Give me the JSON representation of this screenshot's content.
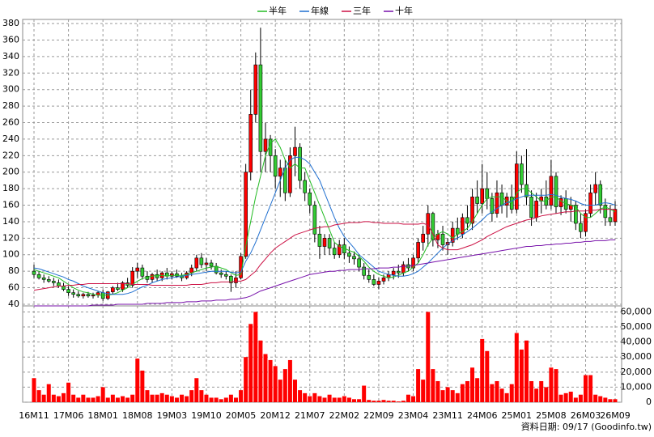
{
  "chart_data": {
    "type": "candlestick",
    "categories": [
      "16M11",
      null,
      null,
      null,
      null,
      null,
      null,
      "17M06",
      null,
      null,
      null,
      null,
      null,
      null,
      "18M01",
      null,
      null,
      null,
      null,
      null,
      null,
      "18M08",
      null,
      null,
      null,
      null,
      null,
      null,
      "19M03",
      null,
      null,
      null,
      null,
      null,
      null,
      "19M10",
      null,
      null,
      null,
      null,
      null,
      null,
      "20M05",
      null,
      null,
      null,
      null,
      null,
      null,
      "20M12",
      null,
      null,
      null,
      null,
      null,
      null,
      "21M07",
      null,
      null,
      null,
      null,
      null,
      null,
      "22M02",
      null,
      null,
      null,
      null,
      null,
      null,
      "22M09",
      null,
      null,
      null,
      null,
      null,
      null,
      "23M04",
      null,
      null,
      null,
      null,
      null,
      null,
      "23M11",
      null,
      null,
      null,
      null,
      null,
      null,
      "24M06",
      null,
      null,
      null,
      null,
      null,
      null,
      "25M01",
      null,
      null,
      null,
      null,
      null,
      null,
      "25M08",
      null,
      null,
      null,
      null,
      null,
      null,
      "26M03",
      null,
      null,
      null,
      null,
      null,
      "26M09"
    ],
    "candles": [
      [
        80,
        88,
        72,
        76
      ],
      [
        76,
        80,
        70,
        72
      ],
      [
        72,
        76,
        66,
        70
      ],
      [
        70,
        74,
        66,
        68
      ],
      [
        68,
        72,
        62,
        66
      ],
      [
        66,
        70,
        60,
        62
      ],
      [
        62,
        66,
        56,
        58
      ],
      [
        58,
        62,
        50,
        54
      ],
      [
        54,
        58,
        48,
        52
      ],
      [
        52,
        56,
        48,
        50
      ],
      [
        50,
        54,
        47,
        52
      ],
      [
        52,
        55,
        48,
        50
      ],
      [
        50,
        54,
        47,
        51
      ],
      [
        51,
        56,
        48,
        54
      ],
      [
        54,
        58,
        44,
        47
      ],
      [
        47,
        56,
        45,
        55
      ],
      [
        55,
        62,
        52,
        60
      ],
      [
        60,
        66,
        56,
        58
      ],
      [
        58,
        68,
        55,
        66
      ],
      [
        66,
        72,
        60,
        63
      ],
      [
        63,
        85,
        60,
        80
      ],
      [
        80,
        90,
        72,
        84
      ],
      [
        84,
        88,
        70,
        74
      ],
      [
        74,
        80,
        66,
        70
      ],
      [
        70,
        78,
        66,
        76
      ],
      [
        76,
        82,
        68,
        72
      ],
      [
        72,
        80,
        68,
        78
      ],
      [
        78,
        84,
        70,
        74
      ],
      [
        74,
        80,
        70,
        77
      ],
      [
        77,
        82,
        72,
        74
      ],
      [
        74,
        78,
        68,
        72
      ],
      [
        72,
        80,
        70,
        78
      ],
      [
        78,
        88,
        74,
        84
      ],
      [
        84,
        100,
        80,
        96
      ],
      [
        96,
        102,
        84,
        88
      ],
      [
        88,
        96,
        80,
        90
      ],
      [
        90,
        94,
        82,
        86
      ],
      [
        86,
        90,
        76,
        78
      ],
      [
        78,
        82,
        72,
        76
      ],
      [
        76,
        80,
        70,
        74
      ],
      [
        74,
        76,
        55,
        66
      ],
      [
        66,
        80,
        60,
        72
      ],
      [
        72,
        102,
        70,
        98
      ],
      [
        98,
        210,
        95,
        200
      ],
      [
        200,
        300,
        190,
        270
      ],
      [
        270,
        345,
        260,
        330
      ],
      [
        330,
        375,
        200,
        225
      ],
      [
        225,
        260,
        200,
        240
      ],
      [
        240,
        245,
        200,
        220
      ],
      [
        220,
        228,
        180,
        195
      ],
      [
        195,
        215,
        170,
        205
      ],
      [
        205,
        215,
        165,
        175
      ],
      [
        175,
        230,
        170,
        220
      ],
      [
        220,
        255,
        195,
        230
      ],
      [
        230,
        235,
        180,
        190
      ],
      [
        190,
        200,
        165,
        175
      ],
      [
        175,
        180,
        150,
        160
      ],
      [
        160,
        165,
        115,
        125
      ],
      [
        125,
        135,
        95,
        110
      ],
      [
        110,
        125,
        100,
        120
      ],
      [
        120,
        125,
        100,
        108
      ],
      [
        108,
        115,
        95,
        100
      ],
      [
        100,
        118,
        96,
        112
      ],
      [
        112,
        120,
        95,
        102
      ],
      [
        102,
        110,
        90,
        98
      ],
      [
        98,
        104,
        88,
        95
      ],
      [
        95,
        100,
        80,
        85
      ],
      [
        85,
        90,
        70,
        75
      ],
      [
        75,
        82,
        66,
        70
      ],
      [
        70,
        76,
        62,
        64
      ],
      [
        64,
        72,
        58,
        68
      ],
      [
        68,
        76,
        64,
        72
      ],
      [
        72,
        80,
        68,
        76
      ],
      [
        76,
        84,
        70,
        80
      ],
      [
        80,
        88,
        72,
        78
      ],
      [
        78,
        92,
        74,
        88
      ],
      [
        88,
        96,
        80,
        84
      ],
      [
        84,
        100,
        80,
        96
      ],
      [
        96,
        120,
        90,
        115
      ],
      [
        115,
        135,
        105,
        125
      ],
      [
        125,
        160,
        110,
        150
      ],
      [
        150,
        152,
        110,
        118
      ],
      [
        118,
        130,
        108,
        125
      ],
      [
        125,
        135,
        105,
        112
      ],
      [
        112,
        120,
        100,
        115
      ],
      [
        115,
        140,
        110,
        132
      ],
      [
        132,
        145,
        118,
        125
      ],
      [
        125,
        150,
        120,
        145
      ],
      [
        145,
        160,
        130,
        138
      ],
      [
        138,
        180,
        130,
        170
      ],
      [
        170,
        190,
        150,
        162
      ],
      [
        162,
        210,
        150,
        180
      ],
      [
        180,
        200,
        155,
        168
      ],
      [
        168,
        175,
        140,
        150
      ],
      [
        150,
        190,
        145,
        175
      ],
      [
        175,
        185,
        150,
        160
      ],
      [
        160,
        175,
        145,
        170
      ],
      [
        170,
        185,
        150,
        155
      ],
      [
        155,
        225,
        150,
        210
      ],
      [
        210,
        220,
        175,
        185
      ],
      [
        185,
        228,
        160,
        170
      ],
      [
        170,
        178,
        135,
        145
      ],
      [
        145,
        175,
        140,
        165
      ],
      [
        165,
        180,
        150,
        170
      ],
      [
        170,
        190,
        155,
        160
      ],
      [
        160,
        215,
        155,
        195
      ],
      [
        195,
        200,
        150,
        158
      ],
      [
        158,
        172,
        148,
        168
      ],
      [
        168,
        178,
        150,
        155
      ],
      [
        155,
        170,
        140,
        160
      ],
      [
        160,
        165,
        130,
        138
      ],
      [
        138,
        150,
        120,
        128
      ],
      [
        128,
        155,
        122,
        150
      ],
      [
        150,
        185,
        145,
        175
      ],
      [
        175,
        200,
        160,
        185
      ],
      [
        185,
        190,
        150,
        160
      ],
      [
        160,
        168,
        135,
        145
      ],
      [
        145,
        160,
        135,
        140
      ],
      [
        140,
        165,
        135,
        155
      ]
    ],
    "up_color": "#ff0000",
    "down_color": "#33cc33",
    "series": [
      {
        "name": "半年",
        "color": "#22bb22",
        "values": [
          82,
          80,
          78,
          76,
          74,
          72,
          68,
          64,
          60,
          57,
          55,
          54,
          52,
          51,
          51,
          51,
          52,
          54,
          57,
          60,
          64,
          68,
          71,
          73,
          74,
          75,
          75,
          74,
          75,
          75,
          75,
          76,
          78,
          80,
          82,
          84,
          85,
          86,
          84,
          82,
          78,
          75,
          76,
          110,
          140,
          170,
          195,
          220,
          235,
          240,
          230,
          215,
          205,
          210,
          205,
          205,
          190,
          175,
          160,
          145,
          130,
          115,
          110,
          108,
          105,
          103,
          98,
          92,
          85,
          80,
          76,
          74,
          72,
          73,
          75,
          78,
          80,
          85,
          90,
          100,
          112,
          120,
          125,
          128,
          125,
          120,
          125,
          128,
          132,
          140,
          150,
          160,
          168,
          170,
          170,
          170,
          165,
          162,
          175,
          180,
          180,
          175,
          170,
          165,
          165,
          170,
          170,
          165,
          162,
          160,
          158,
          150,
          145,
          145,
          150,
          155,
          158,
          155,
          152
        ]
      },
      {
        "name": "年線",
        "color": "#1f6fd0",
        "values": [
          84,
          83,
          81,
          79,
          77,
          75,
          73,
          70,
          68,
          65,
          62,
          60,
          58,
          56,
          54,
          53,
          52,
          52,
          52,
          53,
          55,
          58,
          61,
          63,
          66,
          68,
          70,
          71,
          72,
          73,
          74,
          75,
          76,
          77,
          78,
          79,
          80,
          80,
          80,
          80,
          79,
          78,
          79,
          92,
          102,
          115,
          130,
          145,
          160,
          175,
          190,
          205,
          215,
          218,
          218,
          215,
          210,
          200,
          190,
          175,
          160,
          145,
          132,
          122,
          115,
          108,
          100,
          95,
          90,
          85,
          80,
          78,
          76,
          75,
          74,
          74,
          75,
          77,
          80,
          85,
          90,
          96,
          102,
          108,
          113,
          117,
          120,
          124,
          128,
          132,
          137,
          142,
          148,
          152,
          156,
          160,
          163,
          165,
          168,
          170,
          172,
          172,
          172,
          172,
          172,
          173,
          172,
          170,
          168,
          167,
          165,
          162,
          160,
          160,
          160,
          162,
          163,
          162,
          160
        ]
      },
      {
        "name": "三年",
        "color": "#cc1144",
        "values": [
          57,
          58,
          59,
          60,
          61,
          62,
          62,
          63,
          63,
          64,
          64,
          65,
          65,
          65,
          65,
          65,
          65,
          65,
          65,
          65,
          64,
          64,
          64,
          64,
          63,
          63,
          63,
          63,
          63,
          63,
          63,
          63,
          64,
          64,
          64,
          65,
          66,
          66,
          67,
          67,
          67,
          68,
          68,
          70,
          75,
          80,
          88,
          95,
          102,
          108,
          112,
          116,
          120,
          124,
          126,
          128,
          130,
          132,
          133,
          134,
          134,
          136,
          137,
          138,
          139,
          139,
          139,
          140,
          140,
          139,
          139,
          138,
          138,
          138,
          138,
          137,
          137,
          137,
          137,
          138,
          136,
          125,
          112,
          108,
          106,
          106,
          106,
          108,
          110,
          112,
          115,
          118,
          122,
          125,
          128,
          131,
          134,
          136,
          138,
          140,
          142,
          143,
          145,
          147,
          148,
          149,
          150,
          151,
          152,
          152,
          153,
          153,
          153,
          154,
          154,
          155,
          155,
          155,
          155
        ]
      },
      {
        "name": "十年",
        "color": "#7711aa",
        "values": [
          38,
          38,
          38,
          38,
          38,
          38,
          38,
          38,
          38,
          38,
          38,
          38,
          39,
          39,
          39,
          39,
          39,
          40,
          40,
          40,
          40,
          40,
          40,
          41,
          41,
          41,
          41,
          42,
          42,
          42,
          42,
          43,
          43,
          43,
          44,
          44,
          44,
          45,
          45,
          45,
          46,
          46,
          47,
          48,
          50,
          53,
          56,
          58,
          60,
          62,
          64,
          66,
          68,
          70,
          72,
          74,
          76,
          77,
          78,
          79,
          80,
          80,
          81,
          81,
          82,
          82,
          82,
          83,
          83,
          83,
          84,
          84,
          84,
          85,
          85,
          86,
          86,
          87,
          88,
          89,
          90,
          91,
          92,
          93,
          94,
          95,
          96,
          97,
          98,
          99,
          100,
          101,
          102,
          103,
          104,
          105,
          106,
          107,
          108,
          109,
          110,
          110,
          111,
          111,
          112,
          112,
          113,
          113,
          114,
          114,
          115,
          115,
          116,
          116,
          117,
          117,
          117,
          118,
          118
        ]
      }
    ],
    "ylim": [
      38,
      385
    ],
    "yticks": [
      40,
      60,
      80,
      100,
      120,
      140,
      160,
      180,
      200,
      220,
      240,
      260,
      280,
      300,
      320,
      340,
      360,
      380
    ],
    "volume": {
      "color": "#ff0000",
      "values": [
        16000,
        8000,
        5000,
        12000,
        5000,
        4000,
        6000,
        13000,
        5000,
        3000,
        5000,
        3000,
        3000,
        4000,
        10000,
        3000,
        5000,
        3000,
        4000,
        3000,
        5000,
        29000,
        21000,
        8000,
        5000,
        5000,
        6000,
        5000,
        4000,
        3000,
        5000,
        4000,
        8000,
        16000,
        8000,
        5000,
        3000,
        3000,
        2000,
        3000,
        5000,
        3000,
        8000,
        30000,
        52000,
        60000,
        41000,
        32000,
        28000,
        24000,
        15000,
        22000,
        28000,
        15000,
        8000,
        6000,
        4000,
        6000,
        4000,
        3000,
        5000,
        3000,
        3000,
        4000,
        3000,
        2000,
        2000,
        11000,
        1500,
        1000,
        1000,
        1500,
        1000,
        1000,
        500,
        1000,
        5000,
        4000,
        22000,
        15000,
        60000,
        22000,
        14000,
        8000,
        10000,
        8000,
        6000,
        12000,
        14000,
        23000,
        16000,
        42000,
        34000,
        12000,
        14000,
        9000,
        6000,
        12000,
        46000,
        35000,
        41000,
        14000,
        9000,
        14000,
        10000,
        23000,
        22000,
        5000,
        6000,
        7000,
        3000,
        5000,
        18000,
        18000,
        5000,
        4000,
        3000,
        2000,
        2000
      ],
      "ylim": [
        0,
        64000
      ],
      "yticks": [
        0,
        {
          "value": 10000,
          "label": "10,000"
        },
        {
          "value": 20000,
          "label": "20,000"
        },
        {
          "value": 30000,
          "label": "30,000"
        },
        {
          "value": 40000,
          "label": "40,000"
        },
        {
          "value": 50000,
          "label": "50,000"
        },
        {
          "value": 60000,
          "label": "60,000"
        }
      ]
    },
    "grid": true,
    "footer": "資料日期: 09/17 (Goodinfo.tw)"
  }
}
